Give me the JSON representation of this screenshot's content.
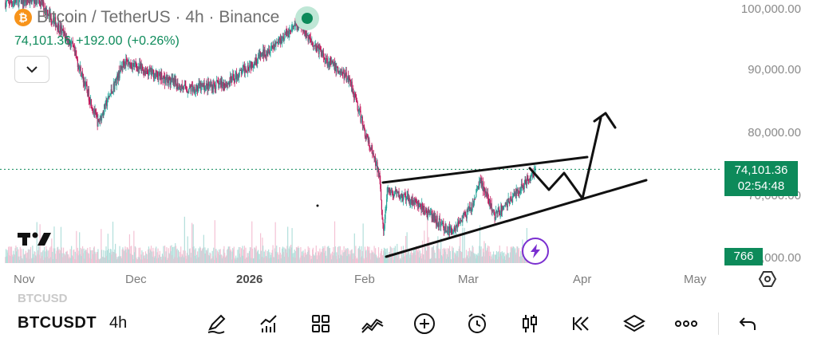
{
  "header": {
    "logo_text": "₿",
    "title": "Bitcoin / TetherUS · 4h · Binance",
    "last_price": "74,101.36",
    "change": "+192.00",
    "change_pct": "(+0.26%)"
  },
  "price_axis": {
    "labels": [
      "100,000.00",
      "90,000.00",
      "80,000.00",
      "70,000.00",
      "60,000.00"
    ],
    "current_price": "74,101.36",
    "countdown": "02:54:48",
    "volume_badge": "766"
  },
  "time_axis": {
    "labels": [
      "Nov",
      "Dec",
      "2026",
      "Feb",
      "Mar",
      "Apr",
      "May"
    ]
  },
  "toolbar": {
    "ghost_symbol": "BTCUSD",
    "symbol": "BTCUSDT",
    "interval": "4h",
    "icons": [
      "pencil-icon",
      "indicators-icon",
      "layouts-icon",
      "line-tool-icon",
      "add-icon",
      "alert-icon",
      "candlestick-icon",
      "replay-icon",
      "layers-icon",
      "more-icon",
      "undo-icon"
    ]
  },
  "colors": {
    "up": "#26a69a",
    "down": "#c2185b",
    "accent": "#0d8a5a",
    "drawing": "#111111",
    "bolt": "#7a2fd0"
  },
  "chart_data": {
    "type": "candlestick",
    "symbol": "Bitcoin / TetherUS",
    "interval": "4h",
    "y_range": [
      60000,
      100000
    ],
    "path_points": [
      [
        "2025-10-27",
        101000
      ],
      [
        "2025-11-05",
        101500
      ],
      [
        "2025-11-14",
        94000
      ],
      [
        "2025-11-21",
        81500
      ],
      [
        "2025-11-28",
        91500
      ],
      [
        "2025-12-06",
        89500
      ],
      [
        "2025-12-15",
        87000
      ],
      [
        "2025-12-26",
        88000
      ],
      [
        "2026-01-05",
        93000
      ],
      [
        "2026-01-14",
        97500
      ],
      [
        "2026-01-22",
        91500
      ],
      [
        "2026-01-28",
        88500
      ],
      [
        "2026-02-01",
        80000
      ],
      [
        "2026-02-05",
        73000
      ],
      [
        "2026-02-06",
        63500
      ],
      [
        "2026-02-07",
        70500
      ],
      [
        "2026-02-14",
        69000
      ],
      [
        "2026-02-24",
        64000
      ],
      [
        "2026-03-02",
        68000
      ],
      [
        "2026-03-04",
        72500
      ],
      [
        "2026-03-08",
        66500
      ],
      [
        "2026-03-15",
        71000
      ],
      [
        "2026-03-19",
        74100
      ]
    ],
    "current_price": 74101.36
  }
}
